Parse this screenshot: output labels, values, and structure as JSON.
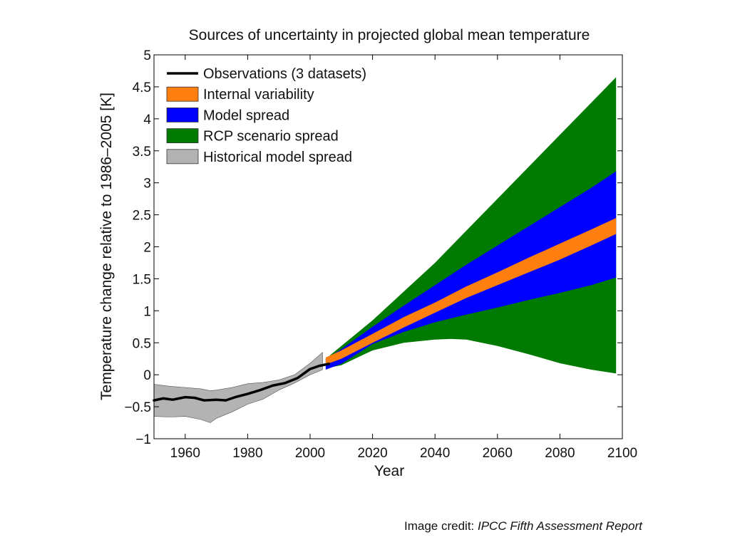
{
  "chart_data": {
    "type": "area",
    "title": "Sources of uncertainty in projected global mean temperature",
    "xlabel": "Year",
    "ylabel": "Temperature change relative to 1986–2005 [K]",
    "xlim": [
      1950,
      2100
    ],
    "ylim": [
      -1,
      5
    ],
    "xticks": [
      1960,
      1980,
      2000,
      2020,
      2040,
      2060,
      2080,
      2100
    ],
    "yticks": [
      -1,
      -0.5,
      0,
      0.5,
      1,
      1.5,
      2,
      2.5,
      3,
      3.5,
      4,
      4.5,
      5
    ],
    "ytick_labels": [
      "−1",
      "−0.5",
      "0",
      "0.5",
      "1",
      "1.5",
      "2",
      "2.5",
      "3",
      "3.5",
      "4",
      "4.5",
      "5"
    ],
    "grid": false,
    "legend_position": "top-left",
    "legend": [
      {
        "label": "Observations (3 datasets)",
        "color": "#000000",
        "kind": "line"
      },
      {
        "label": "Internal variability",
        "color": "#ff7f0e",
        "kind": "patch"
      },
      {
        "label": "Model spread",
        "color": "#0000ff",
        "kind": "patch"
      },
      {
        "label": "RCP scenario spread",
        "color": "#007a00",
        "kind": "patch"
      },
      {
        "label": "Historical model spread",
        "color": "#b3b3b3",
        "kind": "patch"
      }
    ],
    "series": [
      {
        "name": "RCP scenario spread",
        "color": "#007a00",
        "x": [
          2005,
          2010,
          2020,
          2030,
          2040,
          2045,
          2050,
          2060,
          2070,
          2080,
          2090,
          2098
        ],
        "upper": [
          0.25,
          0.45,
          0.85,
          1.3,
          1.75,
          2.0,
          2.25,
          2.75,
          3.25,
          3.75,
          4.25,
          4.65
        ],
        "lower": [
          0.1,
          0.15,
          0.38,
          0.5,
          0.55,
          0.56,
          0.55,
          0.45,
          0.32,
          0.18,
          0.08,
          0.02
        ]
      },
      {
        "name": "Model spread",
        "color": "#0000ff",
        "x": [
          2005,
          2010,
          2020,
          2030,
          2040,
          2050,
          2060,
          2070,
          2080,
          2090,
          2098
        ],
        "upper": [
          0.25,
          0.4,
          0.75,
          1.08,
          1.4,
          1.72,
          2.02,
          2.32,
          2.62,
          2.92,
          3.18
        ],
        "lower": [
          0.08,
          0.17,
          0.48,
          0.67,
          0.82,
          0.94,
          1.05,
          1.17,
          1.28,
          1.4,
          1.52
        ]
      },
      {
        "name": "Internal variability",
        "color": "#ff7f0e",
        "x": [
          2005,
          2010,
          2020,
          2030,
          2040,
          2050,
          2060,
          2070,
          2080,
          2090,
          2098
        ],
        "upper": [
          0.27,
          0.38,
          0.64,
          0.9,
          1.13,
          1.38,
          1.6,
          1.83,
          2.05,
          2.27,
          2.45
        ],
        "lower": [
          0.16,
          0.25,
          0.5,
          0.74,
          0.97,
          1.2,
          1.4,
          1.6,
          1.8,
          2.02,
          2.2
        ]
      },
      {
        "name": "Historical model spread",
        "color": "#b3b3b3",
        "x": [
          1950,
          1955,
          1960,
          1965,
          1968,
          1970,
          1975,
          1980,
          1985,
          1990,
          1995,
          2000,
          2004
        ],
        "upper": [
          -0.15,
          -0.18,
          -0.2,
          -0.22,
          -0.25,
          -0.24,
          -0.2,
          -0.14,
          -0.12,
          -0.08,
          0.0,
          0.18,
          0.35
        ],
        "lower": [
          -0.65,
          -0.66,
          -0.65,
          -0.7,
          -0.75,
          -0.68,
          -0.58,
          -0.46,
          -0.38,
          -0.24,
          -0.13,
          0.0,
          0.08
        ]
      },
      {
        "name": "Observations (3 datasets)",
        "color": "#000000",
        "x": [
          1950,
          1953,
          1956,
          1960,
          1963,
          1966,
          1970,
          1973,
          1976,
          1980,
          1984,
          1988,
          1992,
          1996,
          2000,
          2003,
          2006
        ],
        "y": [
          -0.4,
          -0.37,
          -0.39,
          -0.35,
          -0.36,
          -0.4,
          -0.39,
          -0.4,
          -0.35,
          -0.3,
          -0.24,
          -0.17,
          -0.13,
          -0.05,
          0.09,
          0.14,
          0.17
        ]
      }
    ]
  },
  "credit": {
    "prefix": "Image credit: ",
    "source": "IPCC Fifth Assessment Report"
  }
}
